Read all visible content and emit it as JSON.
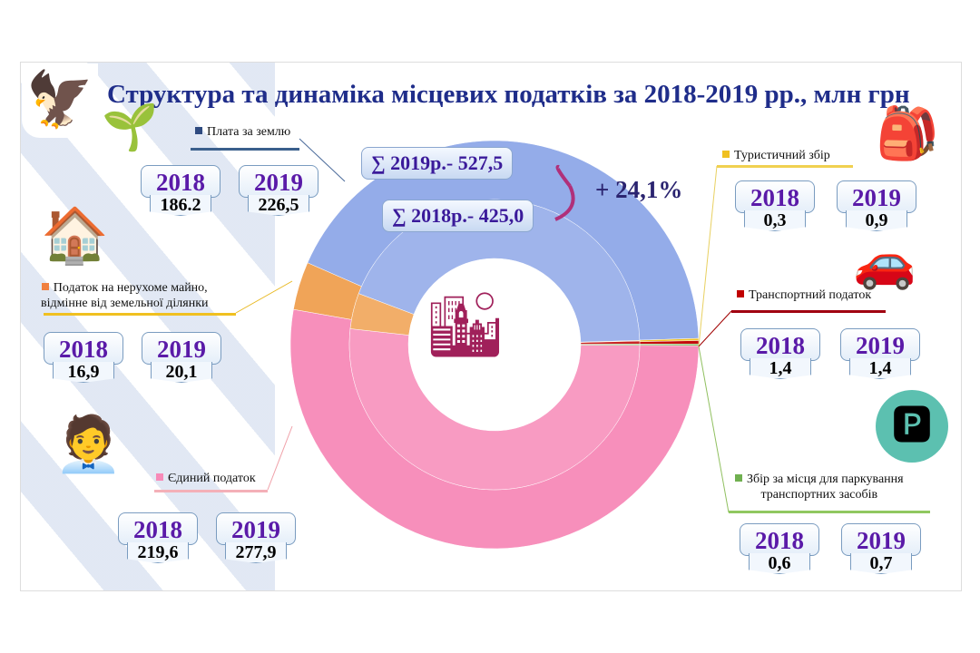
{
  "title": "Структура та динаміка  місцевих  податків за 2018-2019 рр., млн грн",
  "totals": {
    "y2019": "∑ 2019р.- 527,5",
    "y2018": "∑ 2018р.- 425,0",
    "growth": "+ 24,1%"
  },
  "chart_data": {
    "type": "pie",
    "variant": "double-donut",
    "title": "Структура та динаміка  місцевих  податків за 2018-2019 рр., млн грн",
    "unit": "млн грн",
    "rings": [
      "2018 (inner)",
      "2019 (outer)"
    ],
    "categories": [
      {
        "label": "Єдиний  податок",
        "color": "#f78ab8",
        "y2018_label": "2018",
        "y2019_label": "2019",
        "v2018": "219,6",
        "v2019": "277,9",
        "n2018": 219.6,
        "n2019": 277.9
      },
      {
        "label_lines": [
          "Податок на нерухоме майно,",
          "відмінне  від земельної ділянки"
        ],
        "color": "#f0a050",
        "y2018_label": "2018",
        "y2019_label": "2019",
        "v2018": "16,9",
        "v2019": "20,1",
        "n2018": 16.9,
        "n2019": 20.1
      },
      {
        "label": "Плата за землю",
        "color": "#8fa8e8",
        "y2018_label": "2018",
        "y2019_label": "2019",
        "v2018": "186.2",
        "v2019": "226,5",
        "n2018": 186.2,
        "n2019": 226.5
      },
      {
        "label": "Туристичний  збір",
        "color": "#f0c020",
        "y2018_label": "2018",
        "y2019_label": "2019",
        "v2018": "0,3",
        "v2019": "0,9",
        "n2018": 0.3,
        "n2019": 0.9
      },
      {
        "label": "Транспортний  податок",
        "color": "#c00000",
        "y2018_label": "2018",
        "y2019_label": "2019",
        "v2018": "1,4",
        "v2019": "1,4",
        "n2018": 1.4,
        "n2019": 1.4
      },
      {
        "label_lines": [
          "Збір  за місця  для паркування",
          "транспортних  засобів"
        ],
        "color": "#70b050",
        "y2018_label": "2018",
        "y2019_label": "2019",
        "v2018": "0,6",
        "v2019": "0,7",
        "n2018": 0.6,
        "n2019": 0.7
      }
    ]
  }
}
